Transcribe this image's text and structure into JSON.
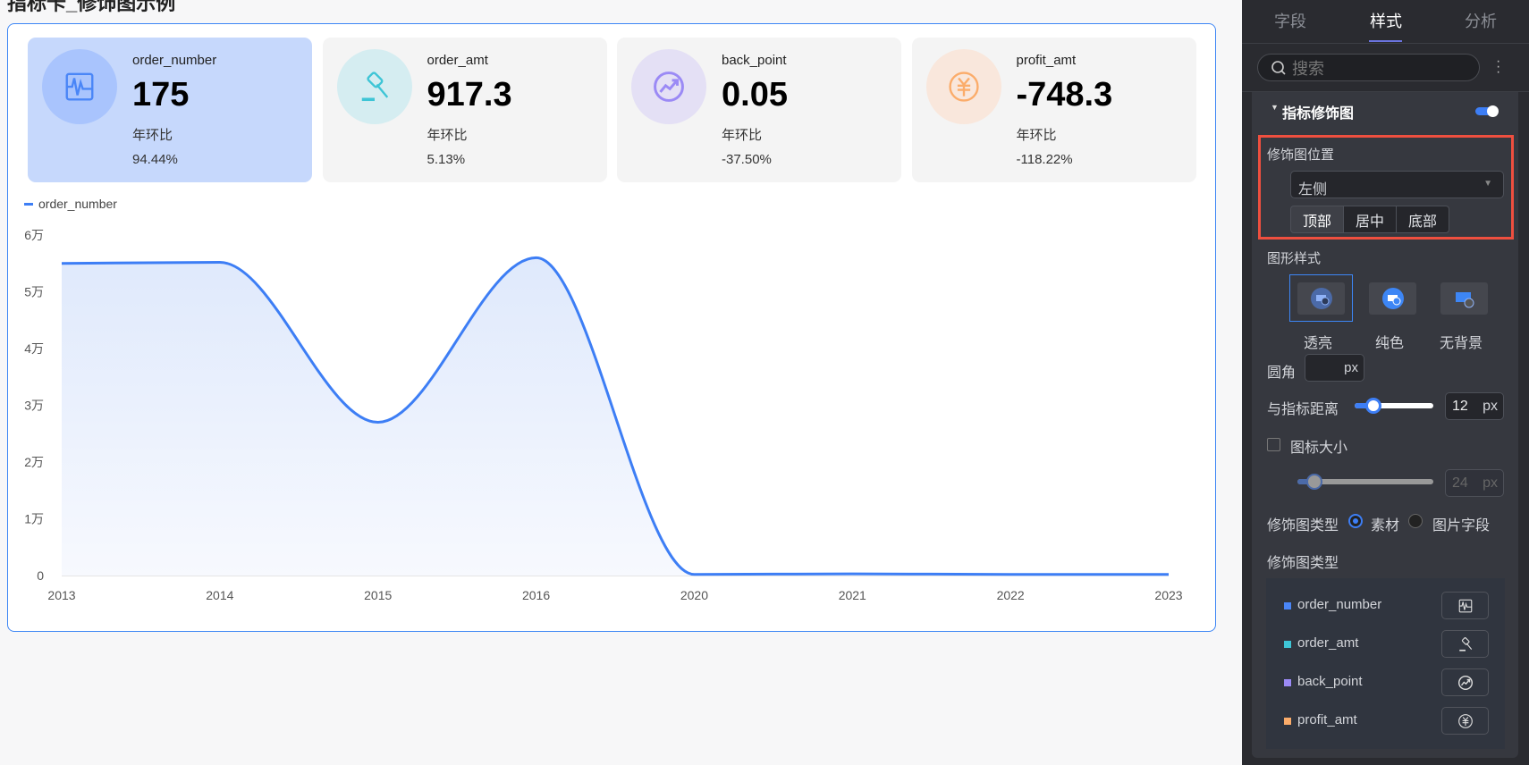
{
  "page": {
    "title": "指标卡_修饰图示例"
  },
  "kpis": [
    {
      "name": "order_number",
      "value": "175",
      "compare_label": "年环比",
      "compare_value": "94.44%",
      "icon": "pulse-chart-icon",
      "color": "#4a86f7",
      "bg": "#a9c4fd"
    },
    {
      "name": "order_amt",
      "value": "917.3",
      "compare_label": "年环比",
      "compare_value": "5.13%",
      "icon": "gavel-icon",
      "color": "#3ec5d6",
      "bg": "#d5edf1"
    },
    {
      "name": "back_point",
      "value": "0.05",
      "compare_label": "年环比",
      "compare_value": "-37.50%",
      "icon": "trend-circle-icon",
      "color": "#9b8af5",
      "bg": "#e4e0f5"
    },
    {
      "name": "profit_amt",
      "value": "-748.3",
      "compare_label": "年环比",
      "compare_value": "-118.22%",
      "icon": "yuan-icon",
      "color": "#fbac6a",
      "bg": "#f9e7dc"
    }
  ],
  "chart_data": {
    "type": "line",
    "legend": [
      "order_number"
    ],
    "legend_position": "top-left",
    "categories": [
      "2013",
      "2014",
      "2015",
      "2016",
      "2020",
      "2021",
      "2022",
      "2023"
    ],
    "series": [
      {
        "name": "order_number",
        "values": [
          55000,
          55200,
          27000,
          56000,
          200,
          300,
          200,
          200
        ]
      }
    ],
    "yticks": [
      "0",
      "1万",
      "2万",
      "3万",
      "4万",
      "5万",
      "6万"
    ],
    "ylim": [
      0,
      60000
    ],
    "color": "#3d7ef5"
  },
  "panel": {
    "tabs": [
      "字段",
      "样式",
      "分析"
    ],
    "active_tab": "样式",
    "search_placeholder": "搜索",
    "section_title": "指标修饰图",
    "section_enabled": true,
    "position_label": "修饰图位置",
    "position_value": "左侧",
    "vertical_options": [
      "顶部",
      "居中",
      "底部"
    ],
    "vertical_selected": "顶部",
    "shape_style_label": "图形样式",
    "shape_styles": [
      "透亮",
      "纯色",
      "无背景"
    ],
    "shape_selected": "透亮",
    "radius_label": "圆角",
    "radius_value": "",
    "unit": "px",
    "distance_label": "与指标距离",
    "distance_value": "12",
    "icon_size_label": "图标大小",
    "icon_size_checked": false,
    "icon_size_value": "24",
    "type_label": "修饰图类型",
    "type_options": [
      "素材",
      "图片字段"
    ],
    "type_selected": "素材",
    "type_list_label": "修饰图类型",
    "items": [
      {
        "name": "order_number",
        "color": "#4a86f7",
        "icon": "pulse-chart-icon"
      },
      {
        "name": "order_amt",
        "color": "#3ec5d6",
        "icon": "gavel-icon"
      },
      {
        "name": "back_point",
        "color": "#9b8af5",
        "icon": "trend-circle-icon"
      },
      {
        "name": "profit_amt",
        "color": "#fbac6a",
        "icon": "yuan-icon"
      }
    ]
  }
}
